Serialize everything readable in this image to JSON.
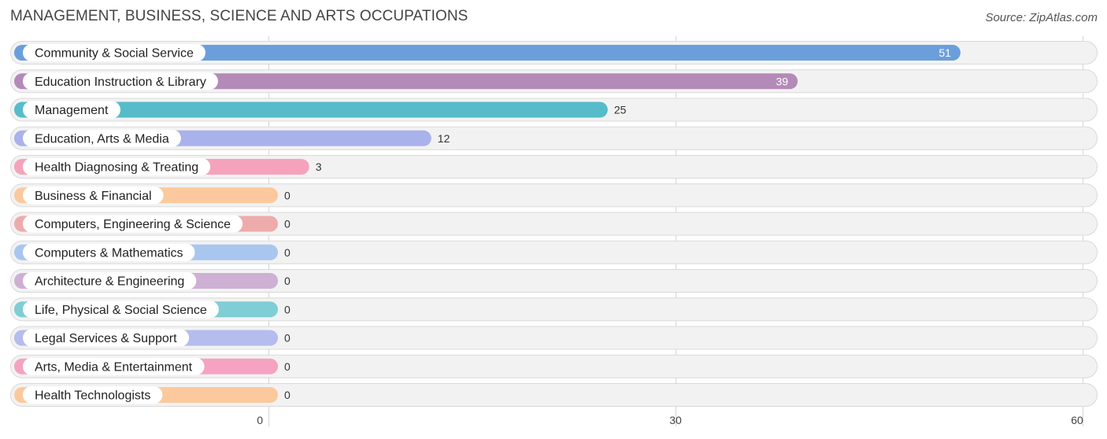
{
  "header": {
    "title": "MANAGEMENT, BUSINESS, SCIENCE AND ARTS OCCUPATIONS",
    "source": "Source: ZipAtlas.com"
  },
  "chart_data": {
    "type": "bar",
    "orientation": "horizontal",
    "title": "MANAGEMENT, BUSINESS, SCIENCE AND ARTS OCCUPATIONS",
    "xlabel": "",
    "ylabel": "",
    "xlim": [
      0,
      60
    ],
    "ticks": [
      0,
      30,
      60
    ],
    "tick_labels": [
      "0",
      "30",
      "60"
    ],
    "grid": true,
    "categories": [
      "Community & Social Service",
      "Education Instruction & Library",
      "Management",
      "Education, Arts & Media",
      "Health Diagnosing & Treating",
      "Business & Financial",
      "Computers, Engineering & Science",
      "Computers & Mathematics",
      "Architecture & Engineering",
      "Life, Physical & Social Science",
      "Legal Services & Support",
      "Arts, Media & Entertainment",
      "Health Technologists"
    ],
    "values": [
      51,
      39,
      25,
      12,
      3,
      0,
      0,
      0,
      0,
      0,
      0,
      0,
      0
    ],
    "value_labels": [
      "51",
      "39",
      "25",
      "12",
      "3",
      "0",
      "0",
      "0",
      "0",
      "0",
      "0",
      "0",
      "0"
    ],
    "colors": [
      "#6a9fdc",
      "#b48ab8",
      "#56bcc9",
      "#a9b2ea",
      "#f5a3bd",
      "#fbc99d",
      "#eeabab",
      "#a9c6ef",
      "#cdb0d4",
      "#7fcdd5",
      "#b5bcee",
      "#f5a3c0",
      "#fbc99d"
    ]
  }
}
